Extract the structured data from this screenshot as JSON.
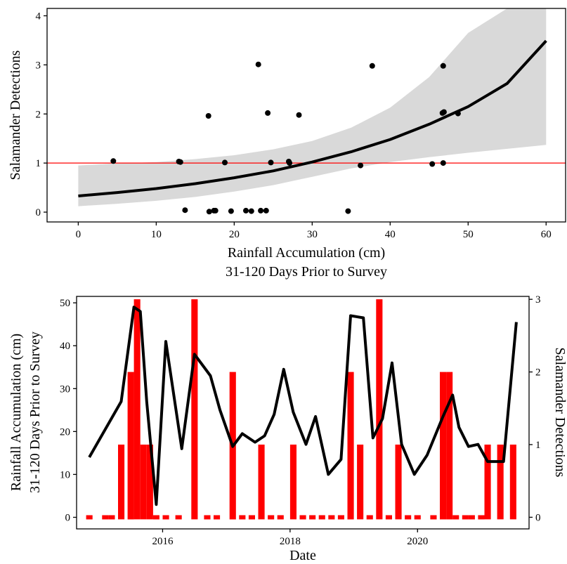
{
  "chart_data": [
    {
      "type": "scatter",
      "xlabel_line1": "Rainfall Accumulation (cm)",
      "xlabel_line2": "31-120 Days Prior to Survey",
      "ylabel": "Salamander Detections",
      "xlim": [
        -4,
        62.5
      ],
      "ylim": [
        -0.2,
        4.15
      ],
      "xticks": [
        0,
        10,
        20,
        30,
        40,
        50,
        60
      ],
      "yticks": [
        0,
        1,
        2,
        3,
        4
      ],
      "points": [
        [
          4.5,
          1.04
        ],
        [
          12.9,
          1.03
        ],
        [
          13.1,
          1.02
        ],
        [
          13.7,
          0.04
        ],
        [
          16.7,
          1.96
        ],
        [
          16.8,
          0.01
        ],
        [
          17.4,
          0.03
        ],
        [
          17.6,
          0.03
        ],
        [
          18.8,
          1.01
        ],
        [
          19.6,
          0.02
        ],
        [
          21.5,
          0.03
        ],
        [
          22.2,
          0.02
        ],
        [
          23.1,
          3.01
        ],
        [
          23.4,
          0.03
        ],
        [
          24.1,
          0.03
        ],
        [
          24.3,
          2.02
        ],
        [
          24.7,
          1.01
        ],
        [
          27.0,
          1.03
        ],
        [
          27.1,
          1.0
        ],
        [
          28.3,
          1.98
        ],
        [
          34.6,
          0.02
        ],
        [
          36.2,
          0.95
        ],
        [
          37.7,
          2.98
        ],
        [
          45.4,
          0.98
        ],
        [
          46.7,
          2.02
        ],
        [
          46.8,
          1.0
        ],
        [
          46.8,
          2.98
        ],
        [
          46.9,
          2.04
        ],
        [
          48.7,
          2.01
        ]
      ],
      "fit": {
        "x": [
          0,
          5,
          10,
          15,
          20,
          25,
          30,
          35,
          40,
          45,
          50,
          55,
          60
        ],
        "y": [
          0.33,
          0.4,
          0.48,
          0.58,
          0.7,
          0.84,
          1.02,
          1.23,
          1.48,
          1.79,
          2.15,
          2.62,
          3.49
        ],
        "lower": [
          0.12,
          0.17,
          0.23,
          0.31,
          0.42,
          0.55,
          0.72,
          0.89,
          1.02,
          1.12,
          1.21,
          1.29,
          1.37
        ],
        "upper": [
          0.95,
          0.99,
          1.02,
          1.08,
          1.16,
          1.28,
          1.45,
          1.72,
          2.13,
          2.75,
          3.65,
          4.15,
          4.15
        ]
      },
      "reference_line": 1,
      "colors": {
        "fit": "#000000",
        "band": "#d9d9d9",
        "points": "#000000",
        "reference": "#ff0000"
      }
    },
    {
      "type": "bar+line",
      "xlabel": "Date",
      "ylabel_line1": "Rainfall Accumulation (cm)",
      "ylabel_line2": "31-120 Days Prior to Survey",
      "y2label": "Salamander Detections",
      "xlim": [
        2014.65,
        2021.75
      ],
      "ylim": [
        -2.7,
        51.5
      ],
      "y2lim": [
        -0.16,
        3.04
      ],
      "xticks": [
        2016,
        2018,
        2020
      ],
      "yticks": [
        0,
        10,
        20,
        30,
        40,
        50
      ],
      "y2ticks": [
        0,
        1,
        2,
        3
      ],
      "bars": {
        "width": 0.1,
        "x": [
          2014.85,
          2015.1,
          2015.2,
          2015.35,
          2015.5,
          2015.6,
          2015.7,
          2015.8,
          2015.9,
          2016.05,
          2016.25,
          2016.5,
          2016.7,
          2016.85,
          2017.1,
          2017.25,
          2017.4,
          2017.55,
          2017.7,
          2017.85,
          2018.05,
          2018.2,
          2018.35,
          2018.5,
          2018.65,
          2018.8,
          2018.95,
          2019.1,
          2019.25,
          2019.4,
          2019.55,
          2019.7,
          2019.85,
          2020.0,
          2020.25,
          2020.4,
          2020.5,
          2020.6,
          2020.75,
          2020.85,
          2021.0,
          2021.1,
          2021.3,
          2021.5
        ],
        "values": [
          0,
          0,
          0,
          1,
          2,
          3,
          1,
          1,
          0,
          0,
          0,
          3,
          0,
          0,
          2,
          0,
          0,
          1,
          0,
          0,
          1,
          0,
          0,
          0,
          0,
          0,
          2,
          1,
          0,
          3,
          0,
          1,
          0,
          0,
          0,
          2,
          2,
          0,
          0,
          0,
          0,
          1,
          1,
          1
        ]
      },
      "line": {
        "x": [
          2014.85,
          2015.35,
          2015.55,
          2015.65,
          2015.75,
          2015.9,
          2016.05,
          2016.3,
          2016.5,
          2016.75,
          2016.9,
          2017.1,
          2017.25,
          2017.45,
          2017.6,
          2017.75,
          2017.9,
          2018.05,
          2018.25,
          2018.4,
          2018.6,
          2018.8,
          2018.95,
          2019.15,
          2019.3,
          2019.45,
          2019.6,
          2019.75,
          2019.95,
          2020.15,
          2020.4,
          2020.55,
          2020.65,
          2020.8,
          2020.95,
          2021.1,
          2021.35,
          2021.55
        ],
        "values": [
          14,
          27,
          49,
          48,
          27,
          3,
          41,
          16,
          38,
          33,
          25,
          16.5,
          19.5,
          17.5,
          19,
          24,
          34.5,
          24.5,
          17,
          23.5,
          10,
          13.5,
          47,
          46.5,
          18.5,
          23,
          36,
          17,
          10,
          14.5,
          23.5,
          28.5,
          21,
          16.5,
          17,
          13,
          13,
          45.5
        ]
      },
      "colors": {
        "bars": "#ff0000",
        "line": "#000000"
      }
    }
  ]
}
